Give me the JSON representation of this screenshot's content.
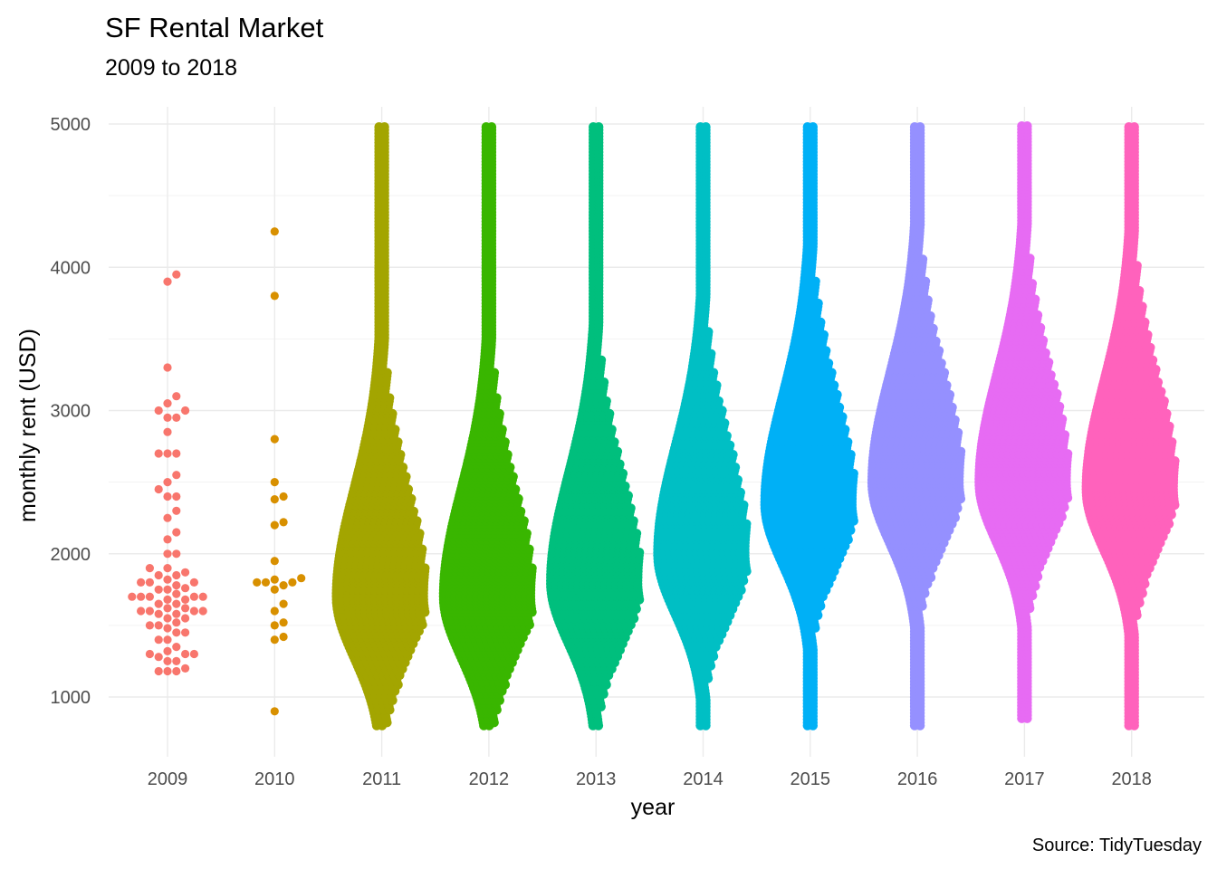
{
  "chart_data": {
    "type": "scatter",
    "subtype": "beeswarm",
    "title": "SF Rental Market",
    "subtitle": "2009 to 2018",
    "xlabel": "year",
    "ylabel": "monthly rent (USD)",
    "caption": "Source: TidyTuesday",
    "ylim": [
      800,
      5000
    ],
    "yticks": [
      1000,
      2000,
      3000,
      4000,
      5000
    ],
    "grid": true,
    "legend": "none",
    "categories": [
      "2009",
      "2010",
      "2011",
      "2012",
      "2013",
      "2014",
      "2015",
      "2016",
      "2017",
      "2018"
    ],
    "series": [
      {
        "category": "2009",
        "color": "#F8766D",
        "values": [
          3950,
          3900,
          3300,
          3100,
          3050,
          3000,
          3000,
          2950,
          2950,
          2850,
          2700,
          2700,
          2700,
          2550,
          2500,
          2450,
          2400,
          2400,
          2300,
          2250,
          2150,
          2100,
          2000,
          2000,
          1900,
          1900,
          1870,
          1850,
          1850,
          1820,
          1800,
          1800,
          1800,
          1780,
          1760,
          1750,
          1750,
          1720,
          1700,
          1700,
          1700,
          1700,
          1700,
          1680,
          1680,
          1650,
          1650,
          1620,
          1620,
          1600,
          1600,
          1600,
          1600,
          1580,
          1580,
          1550,
          1550,
          1520,
          1500,
          1500,
          1480,
          1450,
          1450,
          1400,
          1400,
          1350,
          1320,
          1300,
          1300,
          1300,
          1280,
          1250,
          1250,
          1200,
          1180,
          1180,
          1180
        ]
      },
      {
        "category": "2010",
        "color": "#D89000",
        "values": [
          4250,
          3800,
          2800,
          2500,
          2400,
          2380,
          2220,
          2200,
          1950,
          1830,
          1820,
          1800,
          1800,
          1800,
          1780,
          1750,
          1650,
          1600,
          1520,
          1500,
          1420,
          1400,
          900
        ]
      },
      {
        "category": "2011",
        "color": "#A3A500",
        "median": 1700,
        "min": 800,
        "max": 5000
      },
      {
        "category": "2012",
        "color": "#39B600",
        "median": 1700,
        "min": 800,
        "max": 5000
      },
      {
        "category": "2013",
        "color": "#00BF7D",
        "median": 1800,
        "min": 800,
        "max": 5000
      },
      {
        "category": "2014",
        "color": "#00BFC4",
        "median": 2000,
        "min": 800,
        "max": 5000
      },
      {
        "category": "2015",
        "color": "#00B0F6",
        "median": 2350,
        "min": 800,
        "max": 5000
      },
      {
        "category": "2016",
        "color": "#9590FF",
        "median": 2500,
        "min": 800,
        "max": 5000
      },
      {
        "category": "2017",
        "color": "#E76BF3",
        "median": 2500,
        "min": 850,
        "max": 5000
      },
      {
        "category": "2018",
        "color": "#FF62BC",
        "median": 2450,
        "min": 800,
        "max": 5000
      }
    ]
  }
}
